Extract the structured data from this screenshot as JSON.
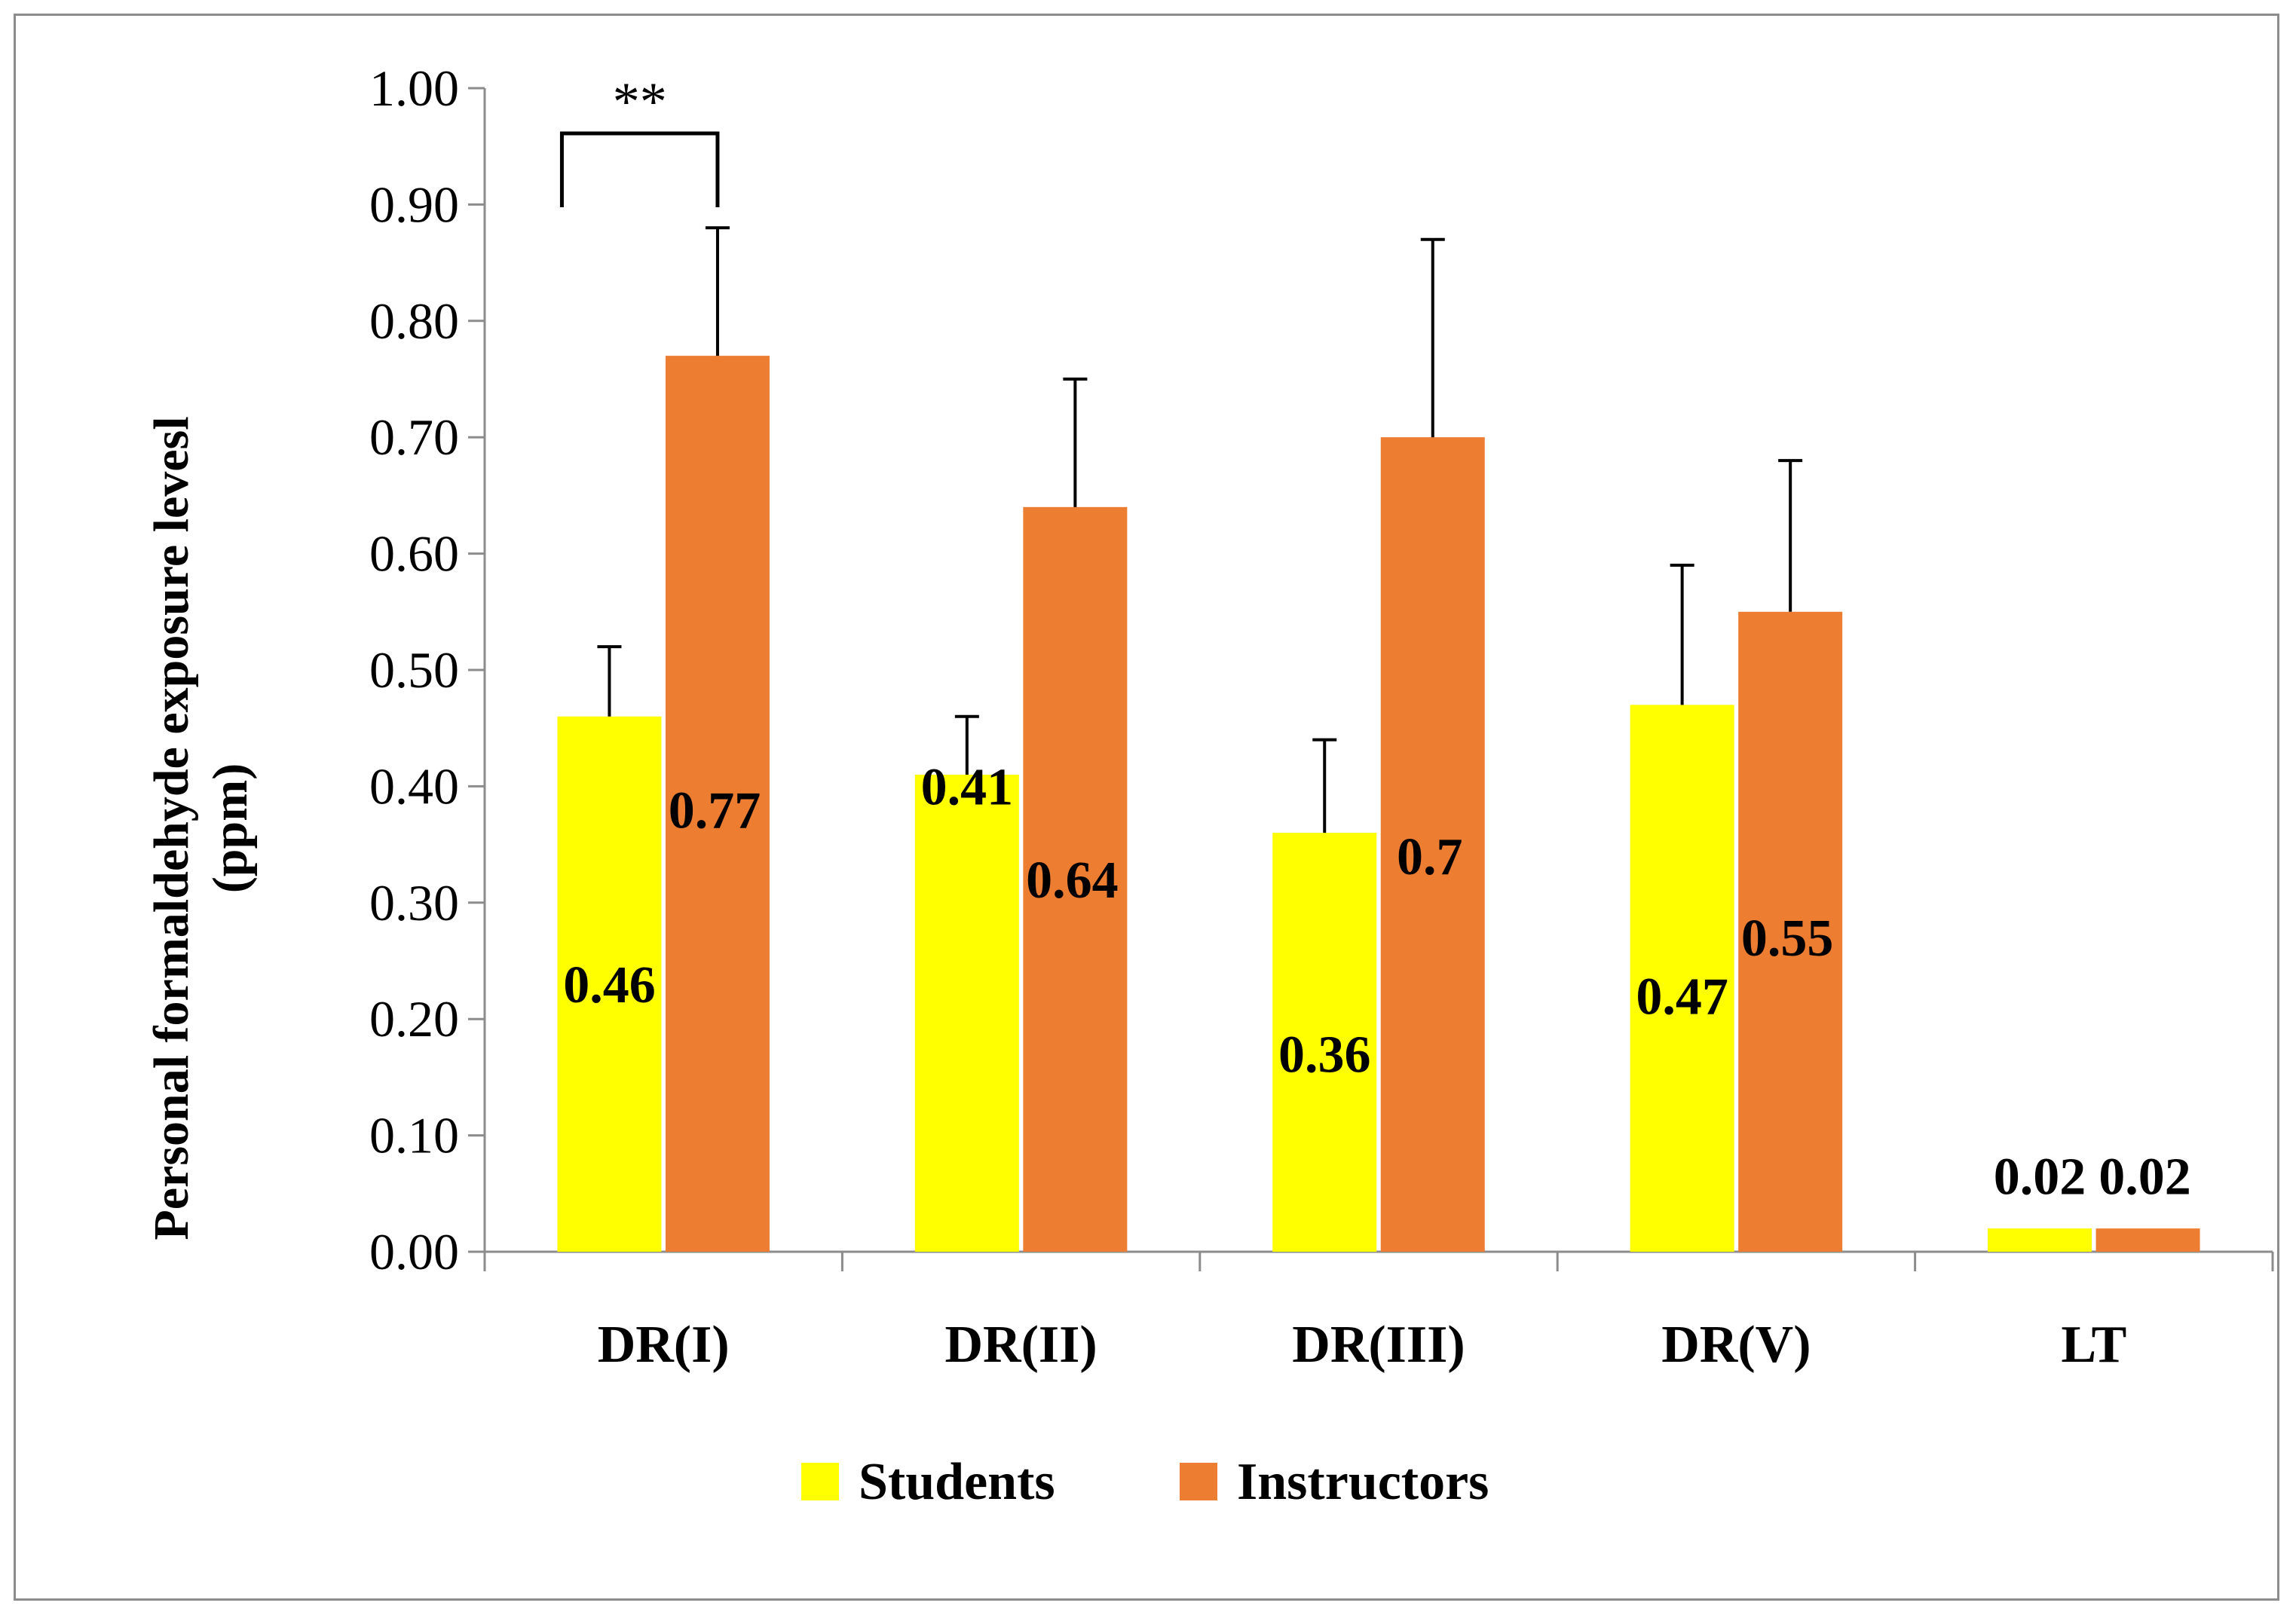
{
  "chart_data": {
    "type": "bar",
    "title": "",
    "xlabel": "",
    "ylabel_lines": [
      "Personal formaldehyde exposure levesl",
      "(ppm)"
    ],
    "ylim": [
      0,
      1
    ],
    "ytick_step": 0.1,
    "yticks": [
      "0.00",
      "0.10",
      "0.20",
      "0.30",
      "0.40",
      "0.50",
      "0.60",
      "0.70",
      "0.80",
      "0.90",
      "1.00"
    ],
    "categories": [
      "DR(I)",
      "DR(II)",
      "DR(III)",
      "DR(V)",
      "LT"
    ],
    "series": [
      {
        "name": "Students",
        "color": "#FFFF00",
        "values": [
          0.46,
          0.41,
          0.36,
          0.47,
          0.02
        ],
        "errors": [
          0.06,
          0.05,
          0.08,
          0.12,
          0
        ],
        "labels": [
          "0.46",
          "0.41",
          "0.36",
          "0.47",
          "0.02"
        ]
      },
      {
        "name": "Instructors",
        "color": "#ED7D31",
        "values": [
          0.77,
          0.64,
          0.7,
          0.55,
          0.02
        ],
        "errors": [
          0.11,
          0.11,
          0.17,
          0.13,
          0
        ],
        "labels": [
          "0.77",
          "0.64",
          "0.7",
          "0.55",
          "0.02"
        ]
      }
    ],
    "significance": {
      "category": "DR(I)",
      "text": "**"
    },
    "legend_position": "bottom",
    "grid": false
  }
}
